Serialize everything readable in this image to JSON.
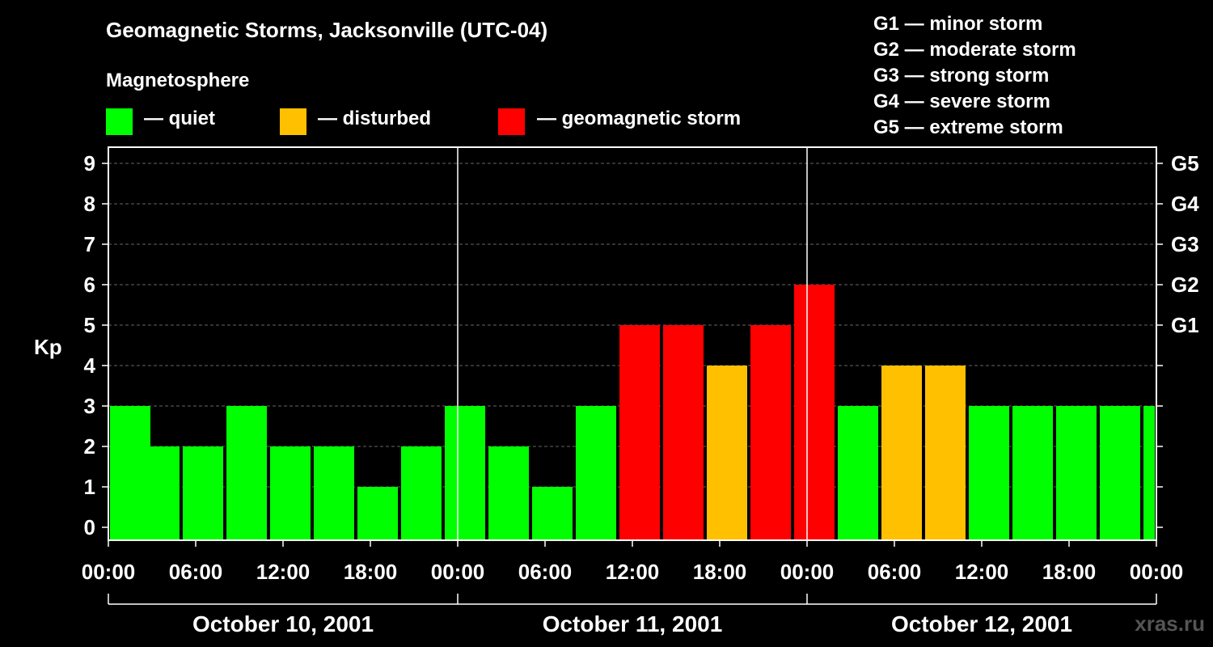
{
  "chart_data": {
    "type": "bar",
    "title": "Geomagnetic Storms, Jacksonville (UTC-04)",
    "ylabel": "Kp",
    "ylim": [
      0,
      9
    ],
    "yticks": [
      "0",
      "1",
      "2",
      "3",
      "4",
      "5",
      "6",
      "7",
      "8",
      "9"
    ],
    "right_axis_labels": [
      {
        "kp": 5,
        "label": "G1"
      },
      {
        "kp": 6,
        "label": "G2"
      },
      {
        "kp": 7,
        "label": "G3"
      },
      {
        "kp": 8,
        "label": "G4"
      },
      {
        "kp": 9,
        "label": "G5"
      }
    ],
    "x_hours_range": [
      0,
      72
    ],
    "xtick_labels": [
      "00:00",
      "06:00",
      "12:00",
      "18:00",
      "00:00",
      "06:00",
      "12:00",
      "18:00",
      "00:00",
      "06:00",
      "12:00",
      "18:00",
      "00:00"
    ],
    "dates": [
      "October 10, 2001",
      "October 11, 2001",
      "October 12, 2001"
    ],
    "bars": [
      {
        "start_hour": 0,
        "kp": 3,
        "level": "quiet"
      },
      {
        "start_hour": 2,
        "kp": 2,
        "level": "quiet"
      },
      {
        "start_hour": 5,
        "kp": 2,
        "level": "quiet"
      },
      {
        "start_hour": 8,
        "kp": 3,
        "level": "quiet"
      },
      {
        "start_hour": 11,
        "kp": 2,
        "level": "quiet"
      },
      {
        "start_hour": 14,
        "kp": 2,
        "level": "quiet"
      },
      {
        "start_hour": 17,
        "kp": 1,
        "level": "quiet"
      },
      {
        "start_hour": 20,
        "kp": 2,
        "level": "quiet"
      },
      {
        "start_hour": 23,
        "kp": 3,
        "level": "quiet"
      },
      {
        "start_hour": 26,
        "kp": 2,
        "level": "quiet"
      },
      {
        "start_hour": 29,
        "kp": 1,
        "level": "quiet"
      },
      {
        "start_hour": 32,
        "kp": 3,
        "level": "quiet"
      },
      {
        "start_hour": 35,
        "kp": 5,
        "level": "storm"
      },
      {
        "start_hour": 38,
        "kp": 5,
        "level": "storm"
      },
      {
        "start_hour": 41,
        "kp": 4,
        "level": "disturbed"
      },
      {
        "start_hour": 44,
        "kp": 5,
        "level": "storm"
      },
      {
        "start_hour": 47,
        "kp": 6,
        "level": "storm"
      },
      {
        "start_hour": 50,
        "kp": 3,
        "level": "quiet"
      },
      {
        "start_hour": 53,
        "kp": 4,
        "level": "disturbed"
      },
      {
        "start_hour": 56,
        "kp": 4,
        "level": "disturbed"
      },
      {
        "start_hour": 59,
        "kp": 3,
        "level": "quiet"
      },
      {
        "start_hour": 62,
        "kp": 3,
        "level": "quiet"
      },
      {
        "start_hour": 65,
        "kp": 3,
        "level": "quiet"
      },
      {
        "start_hour": 68,
        "kp": 3,
        "level": "quiet"
      },
      {
        "start_hour": 71,
        "kp": 3,
        "level": "quiet"
      }
    ],
    "colors": {
      "quiet": "#00ff00",
      "disturbed": "#ffc000",
      "storm": "#ff0000"
    }
  },
  "legend": {
    "heading": "Magnetosphere",
    "quiet": "— quiet",
    "disturbed": "— disturbed",
    "storm": "— geomagnetic storm"
  },
  "g_levels": [
    "G1 — minor storm",
    "G2 — moderate storm",
    "G3 — strong storm",
    "G4 — severe storm",
    "G5 — extreme storm"
  ],
  "watermark": "xras.ru"
}
